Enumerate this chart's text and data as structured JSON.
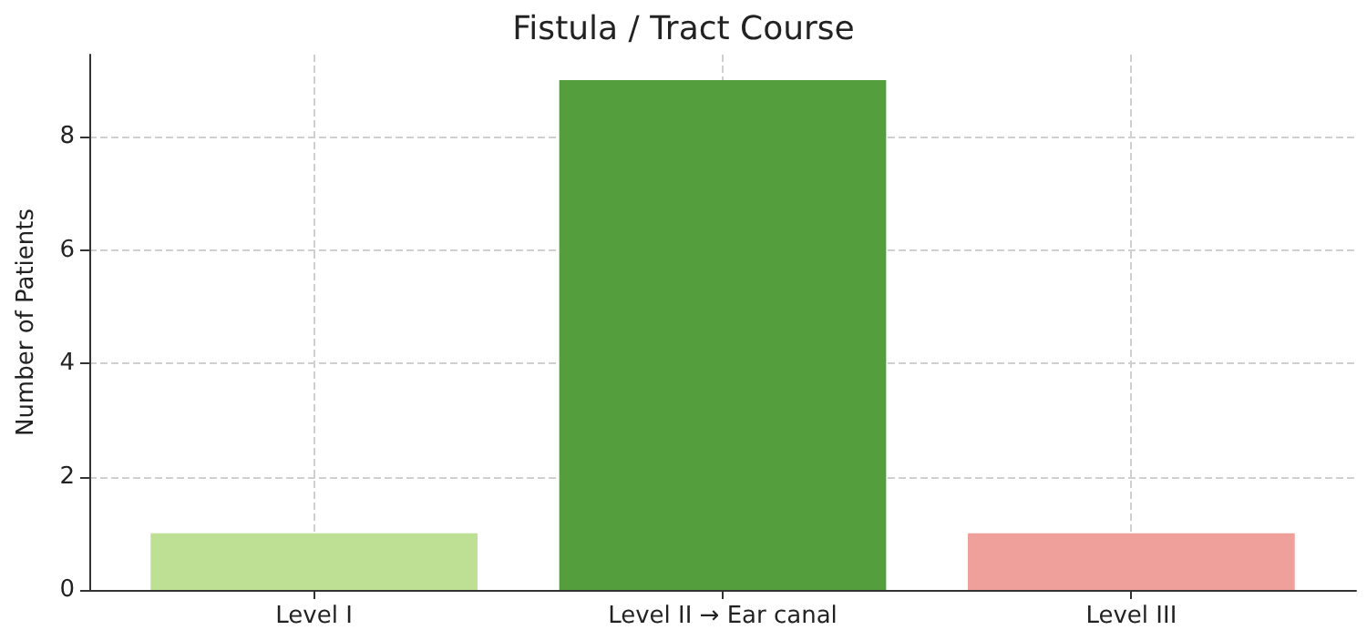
{
  "chart_data": {
    "type": "bar",
    "title": "Fistula / Tract Course",
    "ylabel": "Number of Patients",
    "categories": [
      "Level I",
      "Level II → Ear canal",
      "Level III"
    ],
    "values": [
      1,
      9,
      1
    ],
    "colors": [
      "#bde094",
      "#559e3d",
      "#f0a09a"
    ],
    "ylim": [
      0,
      9.45
    ],
    "yticks": [
      0,
      2,
      4,
      6,
      8
    ],
    "grid": true
  }
}
